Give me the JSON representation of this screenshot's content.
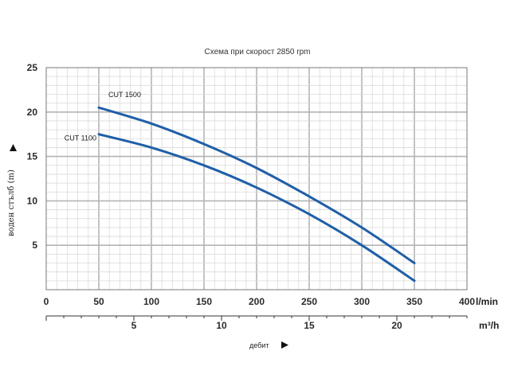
{
  "chart_data": {
    "type": "line",
    "title": "Схема при скорост 2850 rpm",
    "ylabel": "воден стълб (m)",
    "xlabel": "дебит",
    "x_unit_primary": "l/min",
    "x_unit_secondary": "m³/h",
    "xlim": [
      0,
      400
    ],
    "ylim": [
      0,
      25
    ],
    "x_ticks": [
      "0",
      "50",
      "100",
      "150",
      "200",
      "250",
      "300",
      "350",
      "400"
    ],
    "x2_ticks": [
      "5",
      "10",
      "15",
      "20"
    ],
    "y_ticks": [
      "5",
      "10",
      "15",
      "20",
      "25"
    ],
    "grid": true,
    "series_color": "#1f5fa8",
    "series": [
      {
        "name": "CUT 1500",
        "x": [
          50,
          100,
          150,
          200,
          250,
          300,
          350
        ],
        "values": [
          20.5,
          18.7,
          16.4,
          13.7,
          10.5,
          7.0,
          3.0
        ]
      },
      {
        "name": "CUT 1100",
        "x": [
          50,
          100,
          150,
          200,
          250,
          300,
          350
        ],
        "values": [
          17.5,
          16.0,
          14.0,
          11.5,
          8.5,
          5.0,
          1.0
        ]
      }
    ]
  }
}
